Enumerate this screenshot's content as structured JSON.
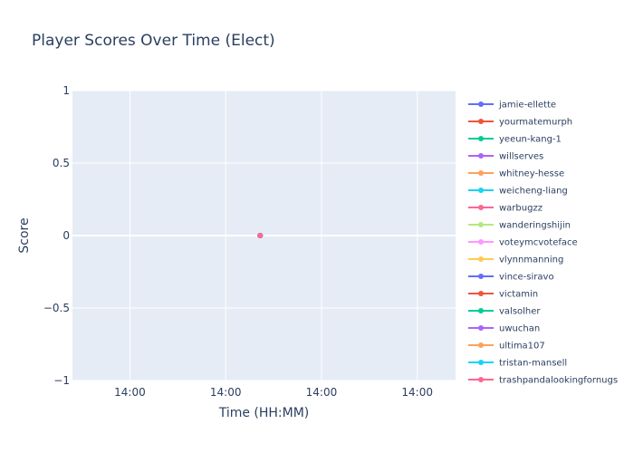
{
  "chart_data": {
    "type": "line",
    "title": "Player Scores Over Time (Elect)",
    "xlabel": "Time (HH:MM)",
    "ylabel": "Score",
    "ylim": [
      -1,
      1
    ],
    "y_ticks": [
      "1",
      "0.5",
      "0",
      "−0.5",
      "−1"
    ],
    "y_tick_values": [
      1,
      0.5,
      0,
      -0.5,
      -1
    ],
    "x_ticks": [
      "14:00",
      "14:00",
      "14:00",
      "14:00"
    ],
    "x_tick_fracs": [
      0.15,
      0.4,
      0.65,
      0.9
    ],
    "point_x_frac": 0.49,
    "legend_position": "right",
    "grid": true,
    "plot_bg": "#e5ecf6",
    "series": [
      {
        "name": "jamie-ellette",
        "color": "#636efa",
        "values": [
          0
        ]
      },
      {
        "name": "yourmatemurph",
        "color": "#ef553b",
        "values": [
          0
        ]
      },
      {
        "name": "yeeun-kang-1",
        "color": "#00cc96",
        "values": [
          0
        ]
      },
      {
        "name": "willserves",
        "color": "#ab63fa",
        "values": [
          0
        ]
      },
      {
        "name": "whitney-hesse",
        "color": "#ffa15a",
        "values": [
          0
        ]
      },
      {
        "name": "weicheng-liang",
        "color": "#19d3f3",
        "values": [
          0
        ]
      },
      {
        "name": "warbugzz",
        "color": "#ff6692",
        "values": [
          0
        ]
      },
      {
        "name": "wanderingshijin",
        "color": "#b6e880",
        "values": [
          0
        ]
      },
      {
        "name": "voteymcvoteface",
        "color": "#ff97ff",
        "values": [
          0
        ]
      },
      {
        "name": "vlynnmanning",
        "color": "#fecb52",
        "values": [
          0
        ]
      },
      {
        "name": "vince-siravo",
        "color": "#636efa",
        "values": [
          0
        ]
      },
      {
        "name": "victamin",
        "color": "#ef553b",
        "values": [
          0
        ]
      },
      {
        "name": "valsolher",
        "color": "#00cc96",
        "values": [
          0
        ]
      },
      {
        "name": "uwuchan",
        "color": "#ab63fa",
        "values": [
          0
        ]
      },
      {
        "name": "ultima107",
        "color": "#ffa15a",
        "values": [
          0
        ]
      },
      {
        "name": "tristan-mansell",
        "color": "#19d3f3",
        "values": [
          0
        ]
      },
      {
        "name": "trashpandalookingfornugs",
        "color": "#ff6692",
        "values": [
          0
        ]
      }
    ]
  }
}
